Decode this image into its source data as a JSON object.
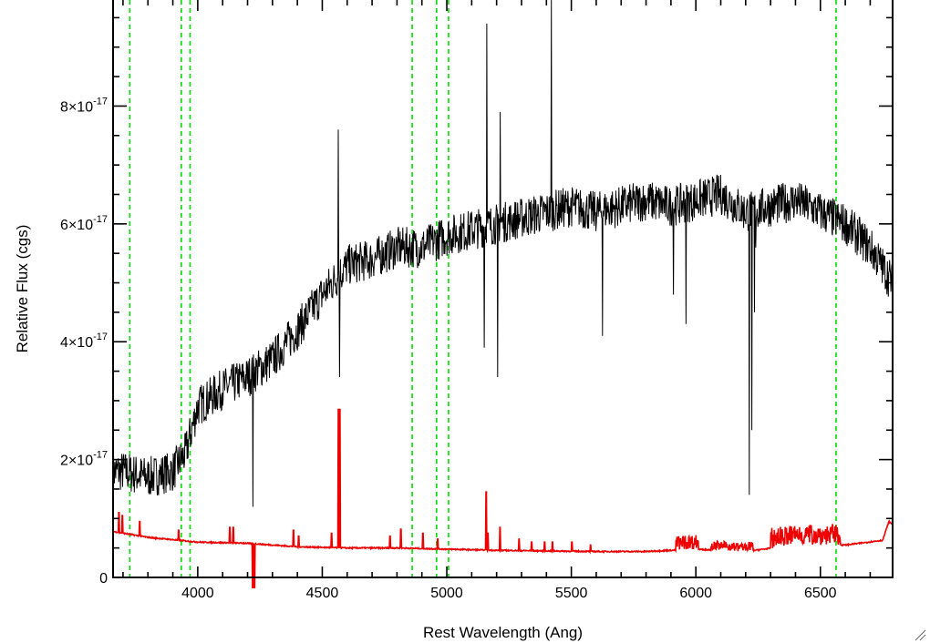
{
  "chart_data": {
    "type": "line",
    "title": "",
    "xlabel": "Rest Wavelength (Ang)",
    "ylabel": "Relative Flux (cgs)",
    "xlim": [
      3660,
      6790
    ],
    "ylim": [
      0,
      9.8e-17
    ],
    "x_ticks": [
      4000,
      4500,
      5000,
      5500,
      6000,
      6500
    ],
    "x_tick_labels": [
      "4000",
      "4500",
      "5000",
      "5500",
      "6000",
      "6500"
    ],
    "y_ticks": [
      0,
      2e-17,
      4e-17,
      6e-17,
      8e-17
    ],
    "y_tick_labels": [
      {
        "mantissa": "0",
        "exponent": ""
      },
      {
        "mantissa": "2×10",
        "exponent": "-17"
      },
      {
        "mantissa": "4×10",
        "exponent": "-17"
      },
      {
        "mantissa": "6×10",
        "exponent": "-17"
      },
      {
        "mantissa": "8×10",
        "exponent": "-17"
      }
    ],
    "grid": false,
    "legend": "none",
    "vertical_lines": {
      "color": "#00dd00",
      "style": "dashed",
      "x": [
        3727,
        3934,
        3969,
        4861,
        4959,
        5007,
        6563
      ]
    },
    "series": [
      {
        "color": "#000000",
        "noise_amplitude": 3.5e-18,
        "continuum": {
          "x": [
            3660,
            3700,
            3800,
            3900,
            3950,
            4000,
            4100,
            4200,
            4300,
            4400,
            4500,
            4600,
            4700,
            4800,
            4900,
            5000,
            5100,
            5200,
            5300,
            5400,
            5500,
            5600,
            5700,
            5800,
            5900,
            6000,
            6100,
            6200,
            6300,
            6400,
            6500,
            6600,
            6700,
            6790
          ],
          "y": [
            1.8e-17,
            1.8e-17,
            1.7e-17,
            1.8e-17,
            2.1e-17,
            2.9e-17,
            3.2e-17,
            3.4e-17,
            3.7e-17,
            4.2e-17,
            4.8e-17,
            5.3e-17,
            5.4e-17,
            5.6e-17,
            5.6e-17,
            5.8e-17,
            5.9e-17,
            6e-17,
            6.1e-17,
            6.2e-17,
            6.3e-17,
            6.2e-17,
            6.3e-17,
            6.4e-17,
            6.3e-17,
            6.4e-17,
            6.5e-17,
            6.2e-17,
            6.3e-17,
            6.4e-17,
            6.2e-17,
            6e-17,
            5.6e-17,
            5e-17
          ]
        },
        "features": [
          {
            "x": 4222,
            "y": 1.2e-17
          },
          {
            "x": 4565,
            "y": 7.6e-17
          },
          {
            "x": 4570,
            "y": 3.4e-17
          },
          {
            "x": 5150,
            "y": 3.9e-17
          },
          {
            "x": 5160,
            "y": 9.4e-17
          },
          {
            "x": 5205,
            "y": 3.4e-17
          },
          {
            "x": 5215,
            "y": 7.9e-17
          },
          {
            "x": 5420,
            "y": 9.8e-17
          },
          {
            "x": 5625,
            "y": 4.1e-17
          },
          {
            "x": 5910,
            "y": 4.8e-17
          },
          {
            "x": 5960,
            "y": 4.3e-17
          },
          {
            "x": 6215,
            "y": 1.4e-17
          },
          {
            "x": 6225,
            "y": 2.5e-17
          },
          {
            "x": 6235,
            "y": 4.5e-17
          },
          {
            "x": 6240,
            "y": 5.6e-17
          }
        ]
      },
      {
        "color": "#ee0000",
        "base": {
          "x": [
            3660,
            3800,
            4000,
            4200,
            4400,
            4600,
            4800,
            5000,
            5200,
            5400,
            5600,
            5800,
            6000,
            6200,
            6400,
            6600,
            6750,
            6775,
            6790
          ],
          "y": [
            7.8e-18,
            6.8e-18,
            6e-18,
            5.8e-18,
            5.2e-18,
            5e-18,
            5e-18,
            4.8e-18,
            4.6e-18,
            4.5e-18,
            4.4e-18,
            4.4e-18,
            4.8e-18,
            4.4e-18,
            5.5e-18,
            5.5e-18,
            6.3e-18,
            9.5e-18,
            9e-18
          ]
        },
        "spikes": [
          {
            "x": 3683,
            "y": 1.1e-17
          },
          {
            "x": 3696,
            "y": 1.05e-17
          },
          {
            "x": 3766,
            "y": 9.5e-18
          },
          {
            "x": 3923,
            "y": 8e-18
          },
          {
            "x": 4128,
            "y": 8.5e-18
          },
          {
            "x": 4141,
            "y": 8.5e-18
          },
          {
            "x": 4220,
            "y": -3e-18
          },
          {
            "x": 4227,
            "y": -3e-18
          },
          {
            "x": 4383,
            "y": 8e-18
          },
          {
            "x": 4405,
            "y": 7e-18
          },
          {
            "x": 4537,
            "y": 7.5e-18
          },
          {
            "x": 4564,
            "y": 2.85e-17
          },
          {
            "x": 4569,
            "y": 2.85e-17
          },
          {
            "x": 4771,
            "y": 7e-18
          },
          {
            "x": 4815,
            "y": 8.2e-18
          },
          {
            "x": 4903,
            "y": 7.5e-18
          },
          {
            "x": 4963,
            "y": 6.5e-18
          },
          {
            "x": 5157,
            "y": 1.45e-17
          },
          {
            "x": 5165,
            "y": 7.5e-18
          },
          {
            "x": 5212,
            "y": 8.5e-18
          },
          {
            "x": 5289,
            "y": 6.5e-18
          },
          {
            "x": 5339,
            "y": 6e-18
          },
          {
            "x": 5392,
            "y": 6e-18
          },
          {
            "x": 5423,
            "y": 6e-18
          },
          {
            "x": 5502,
            "y": 6e-18
          },
          {
            "x": 5577,
            "y": 5.5e-18
          }
        ],
        "noisy_regions": [
          {
            "x0": 5920,
            "x1": 6010,
            "amplitude": 2.5e-18
          },
          {
            "x0": 6060,
            "x1": 6230,
            "amplitude": 1.5e-18
          },
          {
            "x0": 6300,
            "x1": 6580,
            "amplitude": 3.5e-18
          }
        ]
      }
    ]
  }
}
